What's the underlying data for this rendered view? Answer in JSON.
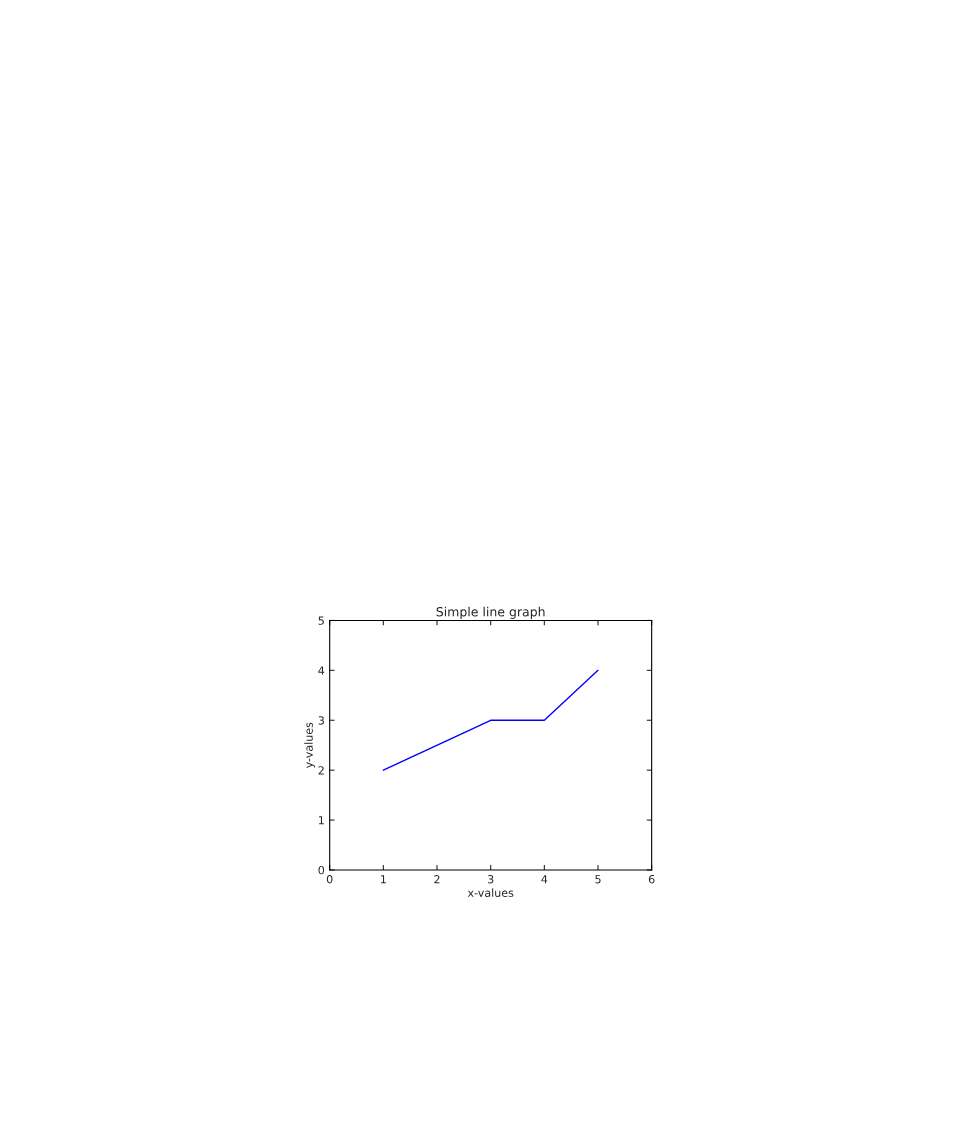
{
  "chart_data": {
    "type": "line",
    "title": "Simple line graph",
    "xlabel": "x-values",
    "ylabel": "y-values",
    "x": [
      1,
      3,
      4,
      5
    ],
    "series": [
      {
        "color": "#0000ff",
        "values": [
          2,
          3,
          3,
          4
        ]
      }
    ],
    "xlim": [
      0,
      6
    ],
    "xticks": [
      0,
      1,
      2,
      3,
      4,
      5,
      6
    ],
    "ylim": [
      0,
      5
    ],
    "yticks": [
      0,
      1,
      2,
      3,
      4,
      5
    ],
    "grid": false
  }
}
